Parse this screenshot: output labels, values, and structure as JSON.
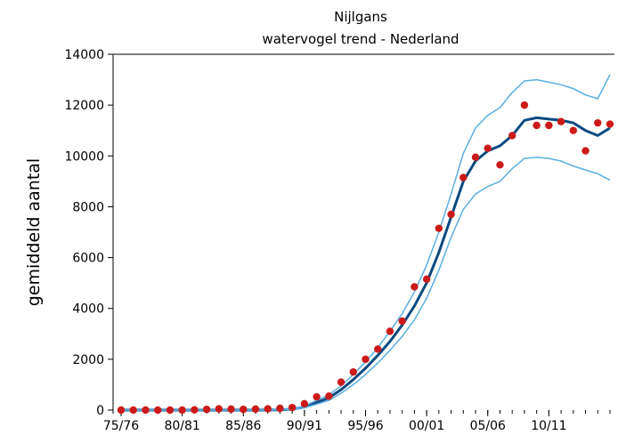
{
  "chart_data": {
    "type": "line",
    "title": "Nijlgans",
    "subtitle": "watervogel trend - Nederland",
    "xlabel": "",
    "ylabel": "gemiddeld aantal",
    "ylim": [
      0,
      14000
    ],
    "yticks": [
      0,
      2000,
      4000,
      6000,
      8000,
      10000,
      12000,
      14000
    ],
    "xlim": [
      1975,
      2015
    ],
    "xticks": [
      {
        "x": 1975,
        "label": "75/76"
      },
      {
        "x": 1980,
        "label": "80/81"
      },
      {
        "x": 1985,
        "label": "85/86"
      },
      {
        "x": 1990,
        "label": "90/91"
      },
      {
        "x": 1995,
        "label": "95/96"
      },
      {
        "x": 2000,
        "label": "00/01"
      },
      {
        "x": 2005,
        "label": "05/06"
      },
      {
        "x": 2010,
        "label": "10/11"
      }
    ],
    "grid": false,
    "series": [
      {
        "role": "trend",
        "color": "#0a4a80",
        "x": [
          1975,
          1976,
          1977,
          1978,
          1979,
          1980,
          1981,
          1982,
          1983,
          1984,
          1985,
          1986,
          1987,
          1988,
          1989,
          1990,
          1991,
          1992,
          1993,
          1994,
          1995,
          1996,
          1997,
          1998,
          1999,
          2000,
          2001,
          2002,
          2003,
          2004,
          2005,
          2006,
          2007,
          2008,
          2009,
          2010,
          2011,
          2012,
          2013,
          2014,
          2015
        ],
        "y": [
          0,
          0,
          0,
          0,
          0,
          0,
          0,
          0,
          0,
          0,
          0,
          0,
          5,
          10,
          40,
          120,
          300,
          480,
          800,
          1200,
          1650,
          2150,
          2700,
          3350,
          4100,
          5000,
          6200,
          7600,
          9000,
          9800,
          10200,
          10400,
          10800,
          11400,
          11500,
          11450,
          11400,
          11300,
          11000,
          10800,
          11100
        ]
      },
      {
        "role": "upper-bound",
        "color": "#5aaee0",
        "x": [
          1975,
          1976,
          1977,
          1978,
          1979,
          1980,
          1981,
          1982,
          1983,
          1984,
          1985,
          1986,
          1987,
          1988,
          1989,
          1990,
          1991,
          1992,
          1993,
          1994,
          1995,
          1996,
          1997,
          1998,
          1999,
          2000,
          2001,
          2002,
          2003,
          2004,
          2005,
          2006,
          2007,
          2008,
          2009,
          2010,
          2011,
          2012,
          2013,
          2014,
          2015
        ],
        "y": [
          0,
          0,
          0,
          0,
          0,
          0,
          0,
          0,
          0,
          0,
          0,
          0,
          10,
          20,
          60,
          160,
          380,
          600,
          950,
          1400,
          1900,
          2450,
          3100,
          3800,
          4650,
          5700,
          7000,
          8500,
          10100,
          11100,
          11600,
          11900,
          12500,
          12950,
          13000,
          12900,
          12800,
          12650,
          12400,
          12250,
          13200
        ]
      },
      {
        "role": "lower-bound",
        "color": "#5aaee0",
        "x": [
          1975,
          1976,
          1977,
          1978,
          1979,
          1980,
          1981,
          1982,
          1983,
          1984,
          1985,
          1986,
          1987,
          1988,
          1989,
          1990,
          1991,
          1992,
          1993,
          1994,
          1995,
          1996,
          1997,
          1998,
          1999,
          2000,
          2001,
          2002,
          2003,
          2004,
          2005,
          2006,
          2007,
          2008,
          2009,
          2010,
          2011,
          2012,
          2013,
          2014,
          2015
        ],
        "y": [
          0,
          0,
          0,
          0,
          0,
          0,
          0,
          0,
          0,
          0,
          0,
          0,
          0,
          5,
          25,
          90,
          230,
          380,
          660,
          1000,
          1400,
          1850,
          2350,
          2900,
          3550,
          4400,
          5500,
          6800,
          7900,
          8500,
          8800,
          9000,
          9500,
          9900,
          9950,
          9900,
          9800,
          9600,
          9450,
          9300,
          9050
        ]
      },
      {
        "role": "observed",
        "type": "scatter",
        "color": "#cc1a1a",
        "x": [
          1975,
          1976,
          1977,
          1978,
          1979,
          1980,
          1981,
          1982,
          1983,
          1984,
          1985,
          1986,
          1987,
          1988,
          1989,
          1990,
          1991,
          1992,
          1993,
          1994,
          1995,
          1996,
          1997,
          1998,
          1999,
          2000,
          2001,
          2002,
          2003,
          2004,
          2005,
          2006,
          2007,
          2008,
          2009,
          2010,
          2011,
          2012,
          2013,
          2014,
          2015
        ],
        "y": [
          0,
          0,
          0,
          0,
          0,
          0,
          10,
          30,
          50,
          40,
          30,
          40,
          50,
          70,
          100,
          250,
          520,
          550,
          1100,
          1500,
          2000,
          2400,
          3100,
          3500,
          4850,
          5150,
          7150,
          7700,
          9150,
          9950,
          10300,
          9650,
          10800,
          12000,
          11200,
          11200,
          11350,
          11000,
          10200,
          11300,
          11250
        ]
      }
    ]
  }
}
